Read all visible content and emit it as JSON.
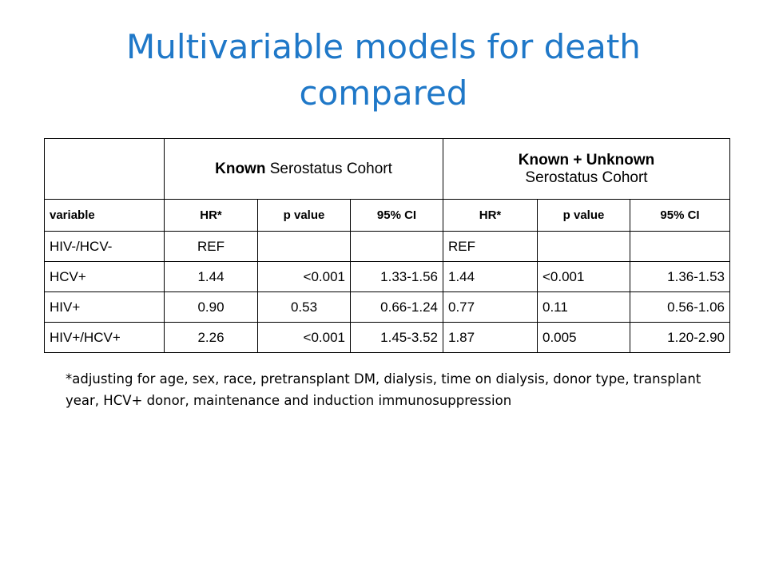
{
  "title": "Multivariable models for death compared",
  "table": {
    "group1_bold": "Known",
    "group1_rest": " Serostatus Cohort",
    "group2_line1": "Known + Unknown",
    "group2_line2": "Serostatus Cohort",
    "column_headers": [
      "variable",
      "HR*",
      "p value",
      "95% CI",
      "HR*",
      "p value",
      "95% CI"
    ],
    "rows": [
      [
        "HIV-/HCV-",
        "REF",
        "",
        "",
        "REF",
        "",
        ""
      ],
      [
        "HCV+",
        "1.44",
        "<0.001",
        "1.33-1.56",
        "1.44",
        "<0.001",
        "1.36-1.53"
      ],
      [
        "HIV+",
        "0.90",
        "0.53",
        "0.66-1.24",
        "0.77",
        "0.11",
        "0.56-1.06"
      ],
      [
        "HIV+/HCV+",
        "2.26",
        "<0.001",
        "1.45-3.52",
        "1.87",
        "0.005",
        "1.20-2.90"
      ]
    ]
  },
  "footnote": "*adjusting for age, sex, race, pretransplant DM, dialysis, time on dialysis, donor type, transplant year, HCV+ donor, maintenance and induction immunosuppression"
}
